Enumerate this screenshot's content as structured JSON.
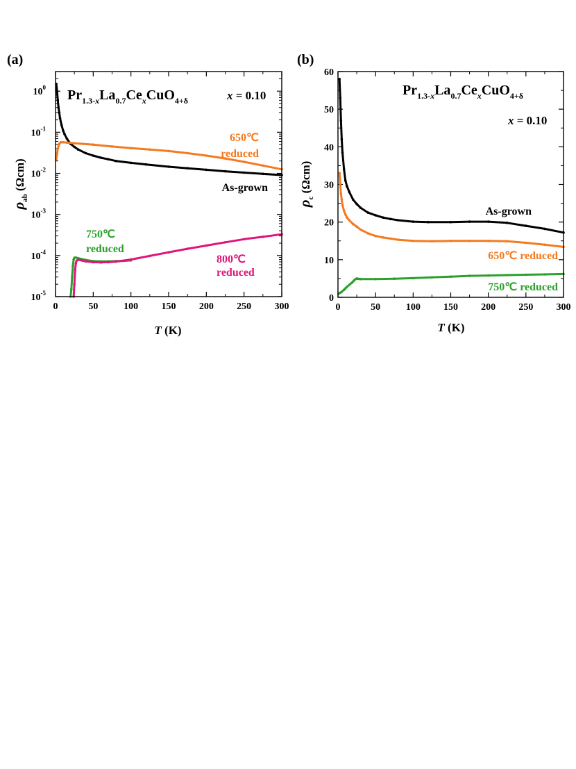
{
  "chart_data": [
    {
      "panel_label": "(a)",
      "type": "line",
      "x_scale": "linear",
      "y_scale": "log",
      "xlabel": {
        "symbol": "T",
        "unit": "(K)"
      },
      "ylabel": {
        "symbol": "ρ",
        "sub": "ab",
        "unit": "(Ωcm)"
      },
      "xlim": [
        0,
        300
      ],
      "ylim": [
        1e-05,
        3
      ],
      "xticks": [
        0,
        50,
        100,
        150,
        200,
        250,
        300
      ],
      "yticks": [
        {
          "value": 1e-05,
          "base": "10",
          "exp": "-5"
        },
        {
          "value": 0.0001,
          "base": "10",
          "exp": "-4"
        },
        {
          "value": 0.001,
          "base": "10",
          "exp": "-3"
        },
        {
          "value": 0.01,
          "base": "10",
          "exp": "-2"
        },
        {
          "value": 0.1,
          "base": "10",
          "exp": "-1"
        },
        {
          "value": 1,
          "base": "10",
          "exp": "0"
        }
      ],
      "formula": {
        "p1": "Pr",
        "s1": "1.3-",
        "s1i": "x",
        "p2": "La",
        "s2": "0.7",
        "p3": "Ce",
        "s3": "x",
        "p4": "CuO",
        "s4": "4+δ"
      },
      "composition": {
        "var": "x",
        "text": " = 0.10"
      },
      "series": [
        {
          "name": "As-grown",
          "color": "#000000",
          "x": [
            1,
            2,
            3,
            4,
            5,
            6,
            8,
            10,
            12,
            15,
            20,
            25,
            30,
            40,
            50,
            60,
            70,
            80,
            100,
            120,
            150,
            175,
            200,
            225,
            250,
            275,
            300
          ],
          "y": [
            1.5,
            1.0,
            0.6,
            0.4,
            0.3,
            0.22,
            0.15,
            0.11,
            0.09,
            0.07,
            0.052,
            0.044,
            0.038,
            0.031,
            0.027,
            0.024,
            0.022,
            0.02,
            0.018,
            0.0165,
            0.0145,
            0.0133,
            0.0122,
            0.0112,
            0.0104,
            0.0097,
            0.0091
          ]
        },
        {
          "name": "650℃ reduced",
          "color": "#f47a1f",
          "x": [
            1,
            2,
            3,
            5,
            7,
            10,
            15,
            25,
            50,
            75,
            100,
            125,
            150,
            175,
            200,
            225,
            250,
            275,
            300
          ],
          "y": [
            0.022,
            0.03,
            0.04,
            0.052,
            0.057,
            0.057,
            0.056,
            0.054,
            0.05,
            0.045,
            0.041,
            0.038,
            0.035,
            0.031,
            0.027,
            0.023,
            0.019,
            0.0155,
            0.0125
          ]
        },
        {
          "name": "750℃ reduced",
          "color": "#2ca02c",
          "x": [
            20,
            21,
            22,
            23,
            24,
            25,
            27,
            30,
            40,
            50,
            60,
            70,
            80,
            90,
            100
          ],
          "y": [
            1e-05,
            1.5e-05,
            3e-05,
            5.5e-05,
            8e-05,
            8.8e-05,
            8.9e-05,
            8.6e-05,
            7.8e-05,
            7.3e-05,
            7.2e-05,
            7.2e-05,
            7.3e-05,
            7.4e-05,
            7.6e-05
          ]
        },
        {
          "name": "800℃ reduced",
          "color": "#e0147a",
          "x": [
            24,
            25,
            26,
            27,
            28,
            30,
            35,
            40,
            50,
            60,
            70,
            80,
            100,
            125,
            150,
            175,
            200,
            225,
            250,
            275,
            300
          ],
          "y": [
            1e-05,
            2e-05,
            4.5e-05,
            6.5e-05,
            7.5e-05,
            7.9e-05,
            7.6e-05,
            7.2e-05,
            6.9e-05,
            6.8e-05,
            6.9e-05,
            7.1e-05,
            8e-05,
            9.8e-05,
            0.00012,
            0.000146,
            0.000175,
            0.00021,
            0.00025,
            0.000285,
            0.00033
          ]
        }
      ],
      "annotations": [
        {
          "series": 1,
          "lines": [
            "650℃",
            "reduced"
          ],
          "color": "#f47a1f"
        },
        {
          "series": 0,
          "lines": [
            "As-grown"
          ],
          "color": "#000000"
        },
        {
          "series": 2,
          "lines": [
            "750℃",
            "reduced"
          ],
          "color": "#2ca02c"
        },
        {
          "series": 3,
          "lines": [
            "800℃",
            "reduced"
          ],
          "color": "#e0147a"
        }
      ]
    },
    {
      "panel_label": "(b)",
      "type": "line",
      "x_scale": "linear",
      "y_scale": "linear",
      "xlabel": {
        "symbol": "T",
        "unit": "(K)"
      },
      "ylabel": {
        "symbol": "ρ",
        "sub": "c",
        "unit": "(Ωcm)"
      },
      "xlim": [
        0,
        300
      ],
      "ylim": [
        0,
        60
      ],
      "xticks": [
        0,
        50,
        100,
        150,
        200,
        250,
        300
      ],
      "yticks": [
        0,
        10,
        20,
        30,
        40,
        50,
        60
      ],
      "formula": {
        "p1": "Pr",
        "s1": "1.3-",
        "s1i": "x",
        "p2": "La",
        "s2": "0.7",
        "p3": "Ce",
        "s3": "x",
        "p4": "CuO",
        "s4": "4+δ"
      },
      "composition": {
        "var": "x",
        "text": " = 0.10"
      },
      "series": [
        {
          "name": "As-grown",
          "color": "#000000",
          "x": [
            2,
            3,
            4,
            5,
            6,
            8,
            10,
            12,
            15,
            20,
            25,
            30,
            40,
            50,
            60,
            70,
            80,
            100,
            120,
            150,
            175,
            200,
            225,
            250,
            275,
            300
          ],
          "y": [
            58,
            53,
            47,
            42,
            38.5,
            34,
            31,
            29.5,
            28,
            26,
            24.8,
            23.8,
            22.5,
            21.8,
            21.2,
            20.8,
            20.5,
            20.1,
            20.0,
            20.0,
            20.1,
            20.1,
            19.8,
            19.0,
            18.2,
            17.2
          ]
        },
        {
          "name": "650℃ reduced",
          "color": "#f47a1f",
          "x": [
            2,
            3,
            4,
            5,
            6,
            8,
            10,
            12,
            15,
            20,
            25,
            30,
            40,
            50,
            60,
            70,
            80,
            100,
            125,
            150,
            175,
            200,
            225,
            250,
            275,
            300
          ],
          "y": [
            33,
            30,
            27.5,
            26,
            24.5,
            23,
            22,
            21.2,
            20.5,
            19.5,
            18.8,
            18.0,
            17.0,
            16.3,
            15.9,
            15.6,
            15.3,
            15.0,
            14.9,
            15.0,
            15.0,
            15.0,
            14.9,
            14.5,
            14.0,
            13.4
          ]
        },
        {
          "name": "750℃ reduced",
          "color": "#2ca02c",
          "x": [
            1,
            3,
            5,
            8,
            10,
            12,
            15,
            18,
            20,
            22,
            24,
            25,
            26,
            28,
            30,
            50,
            75,
            100,
            125,
            150,
            175,
            200,
            225,
            250,
            275,
            300
          ],
          "y": [
            1,
            1.2,
            1.5,
            2.0,
            2.4,
            2.8,
            3.3,
            3.8,
            4.2,
            4.6,
            4.9,
            5.0,
            4.95,
            4.9,
            4.85,
            4.85,
            4.95,
            5.1,
            5.3,
            5.5,
            5.7,
            5.8,
            5.9,
            6.0,
            6.1,
            6.2
          ]
        }
      ],
      "annotations": [
        {
          "series": 0,
          "lines": [
            "As-grown"
          ],
          "color": "#000000"
        },
        {
          "series": 1,
          "lines": [
            "650℃  reduced"
          ],
          "color": "#f47a1f"
        },
        {
          "series": 2,
          "lines": [
            "750℃  reduced"
          ],
          "color": "#2ca02c"
        }
      ]
    }
  ]
}
